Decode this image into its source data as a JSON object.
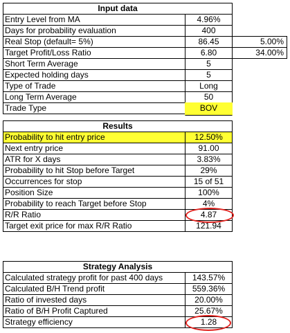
{
  "input": {
    "title": "Input data",
    "rows": [
      {
        "label": "Entry Level from MA",
        "value": "4.96%"
      },
      {
        "label": "Days for probability evaluation",
        "value": "400"
      },
      {
        "label": "Real Stop (default= 5%)",
        "value": "86.45"
      },
      {
        "label": "Target Profit/Loss Ratio",
        "value": "6.80"
      },
      {
        "label": "Short Term Average",
        "value": "5"
      },
      {
        "label": "Expected holding days",
        "value": "5"
      },
      {
        "label": "Type of Trade",
        "value": "Long"
      },
      {
        "label": "Long Term Average",
        "value": "50"
      },
      {
        "label": "Trade Type",
        "value": "BOV"
      }
    ],
    "side_values": [
      "5.00%",
      "34.00%"
    ]
  },
  "results": {
    "title": "Results",
    "rows": [
      {
        "label": "Probability to hit entry price",
        "value": "12.50%"
      },
      {
        "label": "Next entry price",
        "value": "91.00"
      },
      {
        "label": "ATR for X days",
        "value": "3.83%"
      },
      {
        "label": "Probability to hit Stop before Target",
        "value": "29%"
      },
      {
        "label": "Occurrences for stop",
        "value": "15 of 51"
      },
      {
        "label": "Position Size",
        "value": "100%"
      },
      {
        "label": "Probability to reach Target before Stop",
        "value": "4%"
      },
      {
        "label": "R/R Ratio",
        "value": "4.87"
      },
      {
        "label": "Target exit price for max R/R Ratio",
        "value": "121.94"
      }
    ]
  },
  "strategy": {
    "title": "Strategy Analysis",
    "rows": [
      {
        "label": "Calculated strategy profit for past 400 days",
        "value": "143.57%"
      },
      {
        "label": "Calculated B/H Trend profit",
        "value": "559.36%"
      },
      {
        "label": "Ratio of invested days",
        "value": "20.00%"
      },
      {
        "label": "Ratio of B/H Profit Captured",
        "value": "25.67%"
      },
      {
        "label": "Strategy efficiency",
        "value": "1.28"
      }
    ]
  },
  "colors": {
    "highlight": "#ffff33",
    "annotation": "#e0201c"
  }
}
